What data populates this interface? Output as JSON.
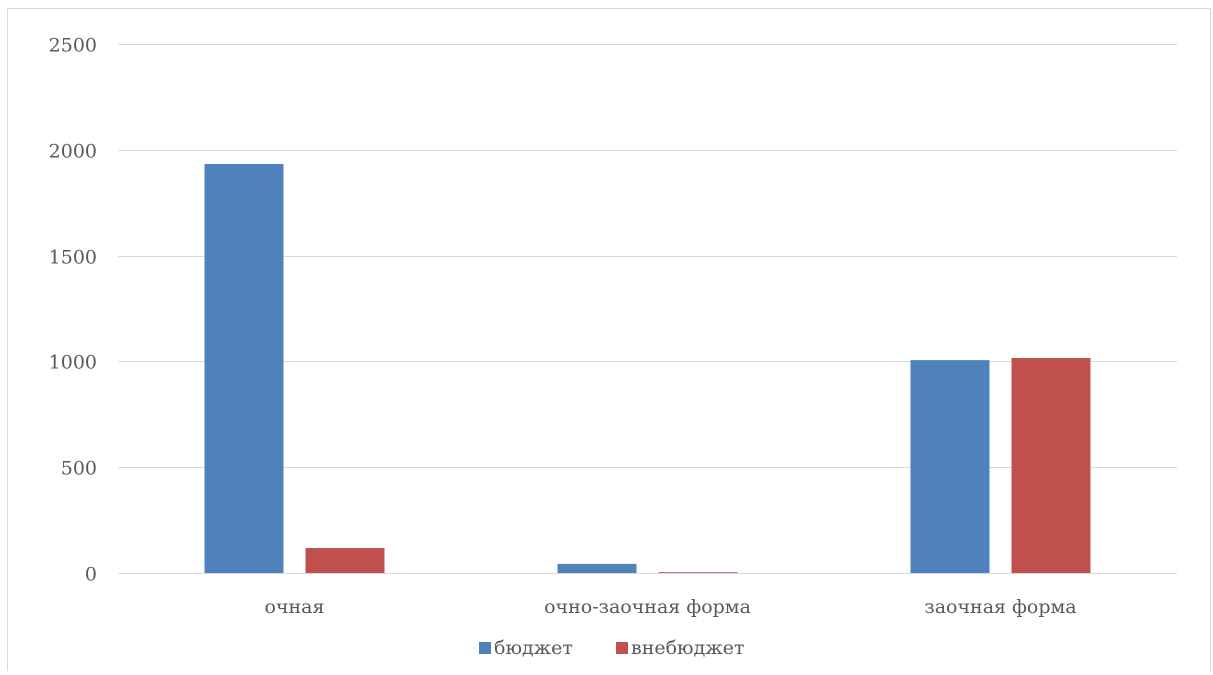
{
  "chart_data": {
    "type": "bar",
    "categories": [
      "очная",
      "очно-заочная форма",
      "заочная форма"
    ],
    "series": [
      {
        "name": "бюджет",
        "color": "#4F81BD",
        "values": [
          1933,
          43,
          1006
        ]
      },
      {
        "name": "внебюджет",
        "color": "#C0504D",
        "values": [
          118,
          2,
          1016
        ]
      }
    ],
    "ylim": [
      0,
      2500
    ],
    "yticks": [
      0,
      500,
      1000,
      1500,
      2000,
      2500
    ],
    "grid": true,
    "legend_position": "bottom",
    "colors": {
      "grid": "#d9d9d9",
      "border": "#d9d9d9",
      "text": "#595959"
    }
  }
}
